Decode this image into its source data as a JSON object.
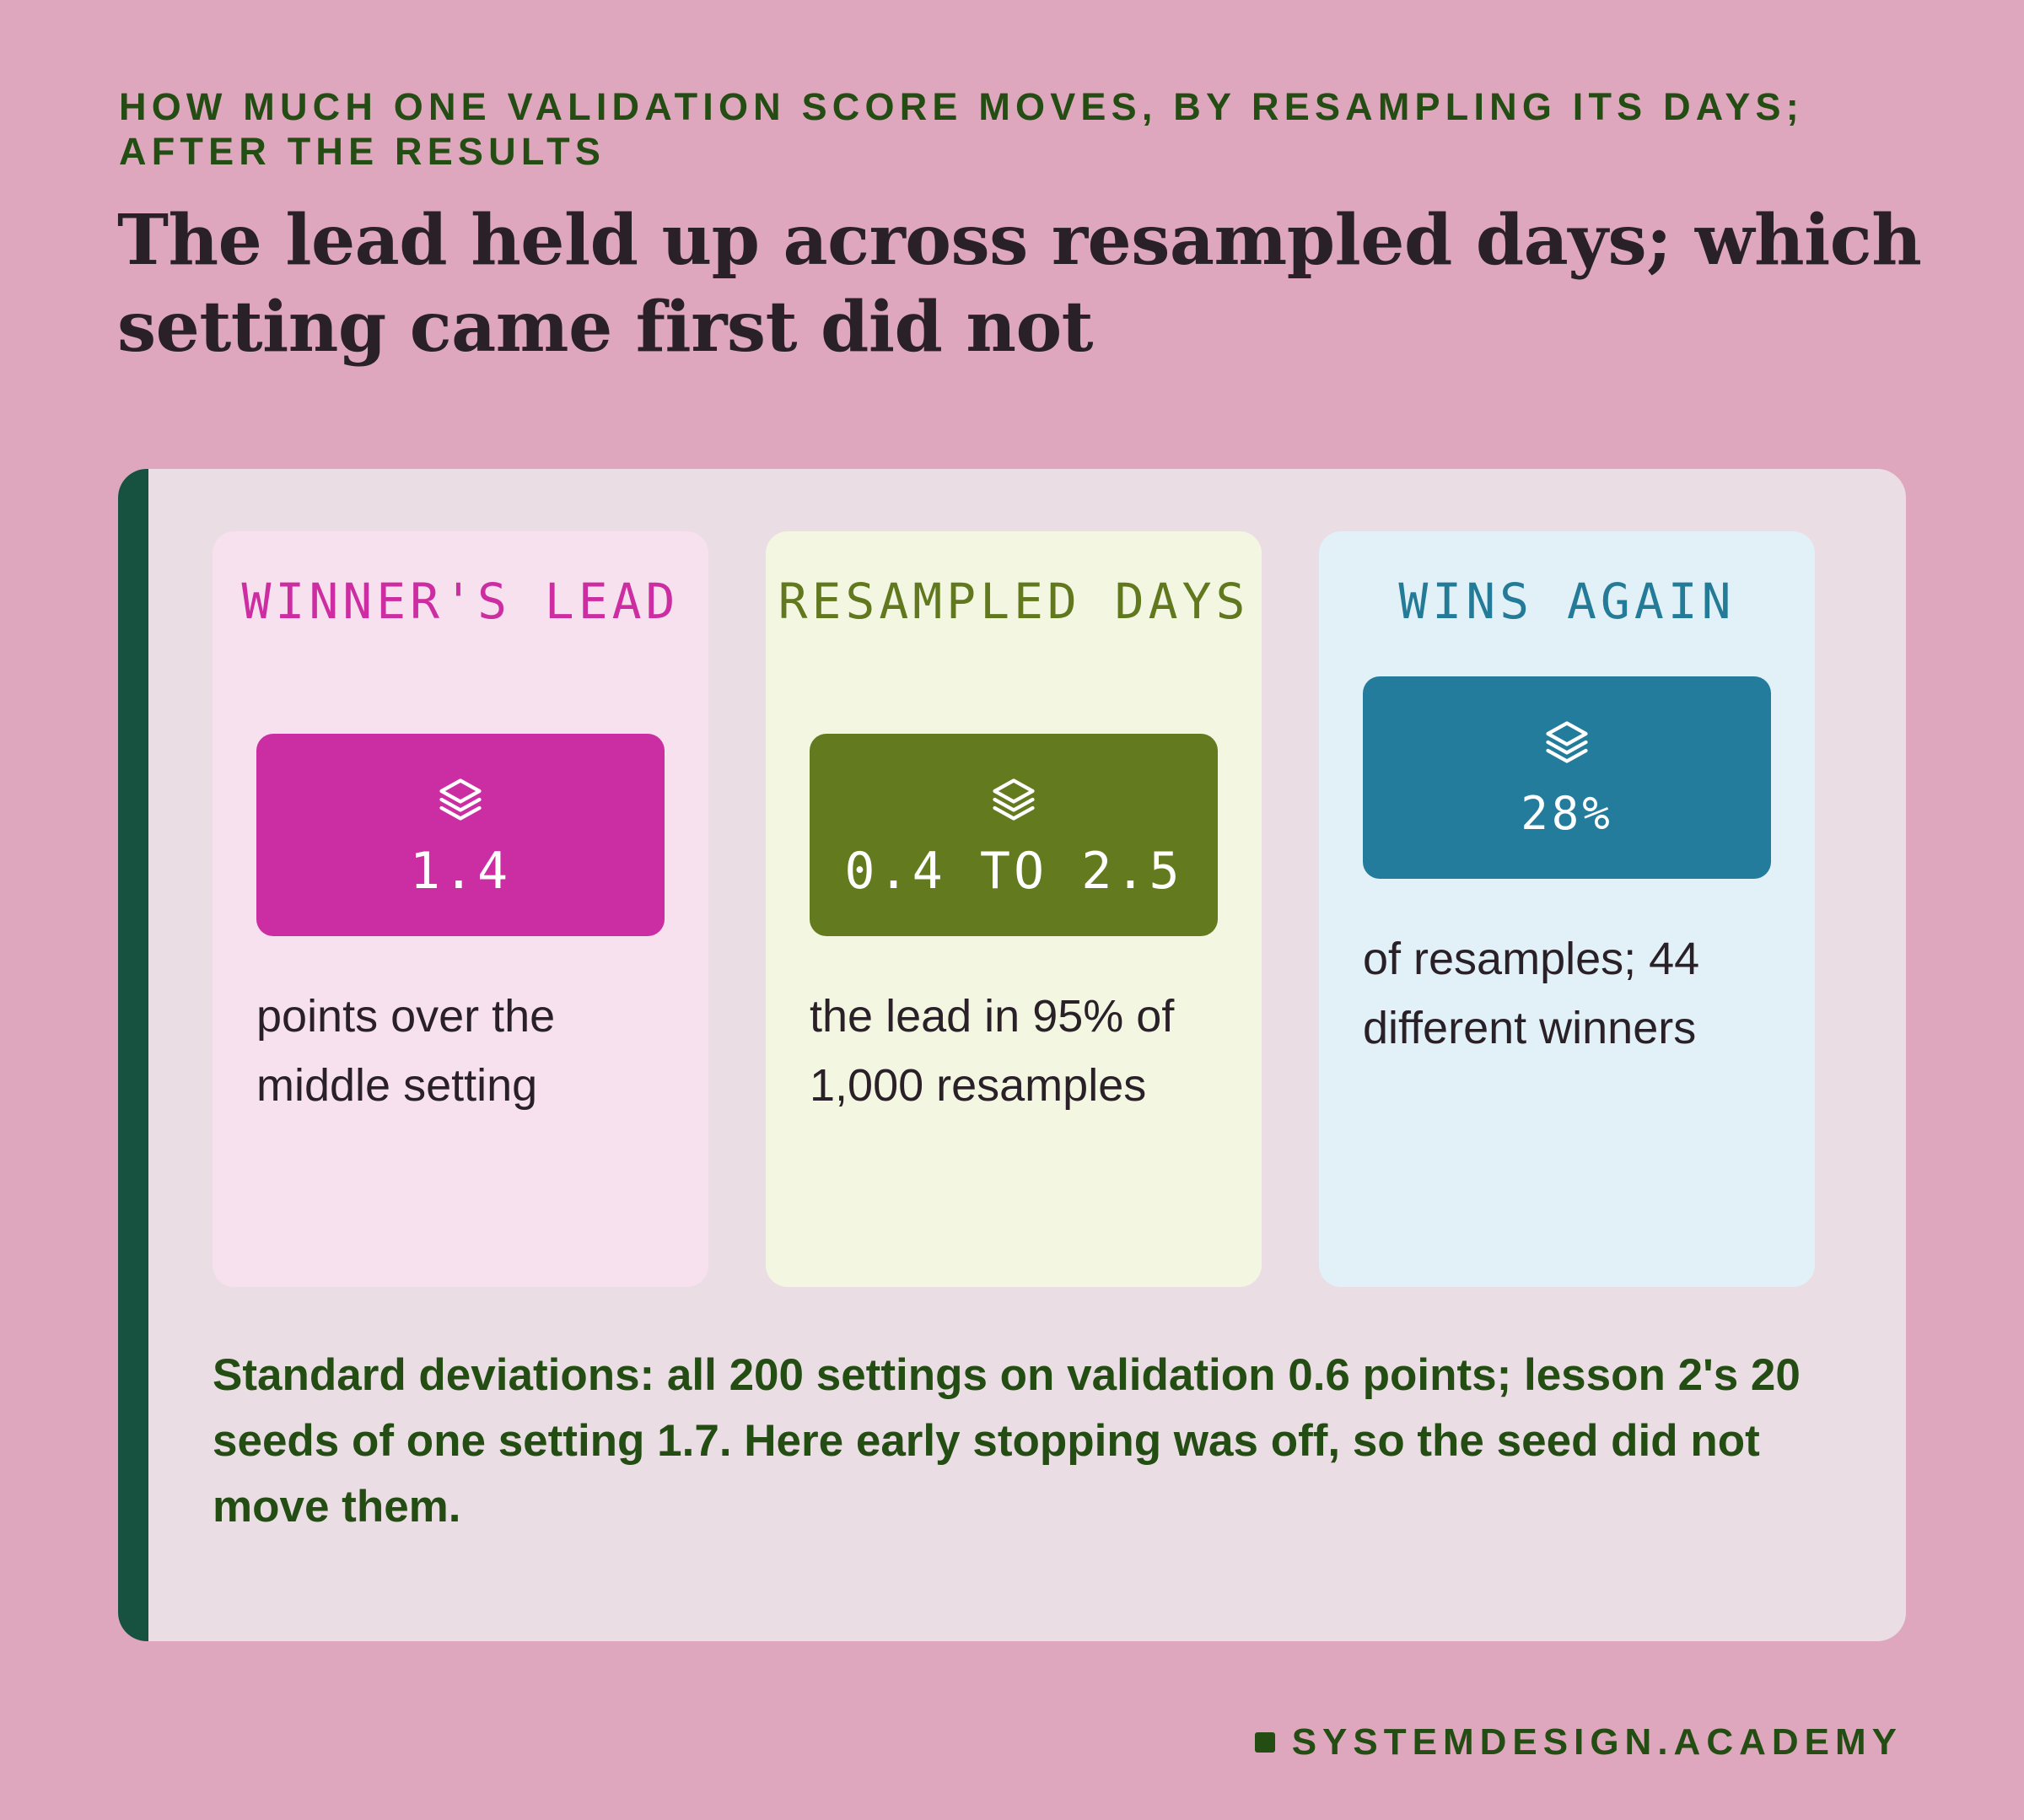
{
  "eyebrow": "HOW MUCH ONE VALIDATION SCORE MOVES, BY RESAMPLING ITS DAYS; AFTER THE RESULTS",
  "headline": "The lead held up across resampled days; which setting came first did not",
  "colors": {
    "background": "#dea7bd",
    "panel": "#eadde3",
    "accent_bar": "#17513f",
    "text_dark": "#2a2128",
    "text_green": "#244d14",
    "magenta": "#ca2ea2",
    "olive": "#637a1f",
    "teal": "#237c9b"
  },
  "cards": [
    {
      "label": "WINNER'S LEAD",
      "icon": "layers-icon",
      "value": "1.4",
      "description": "points over the middle setting"
    },
    {
      "label": "RESAMPLED DAYS",
      "icon": "layers-icon",
      "value": "0.4 TO 2.5",
      "description": "the lead in 95% of 1,000 resamples"
    },
    {
      "label": "WINS AGAIN",
      "icon": "layers-icon",
      "value": "28%",
      "description": "of resamples; 44 different winners"
    }
  ],
  "footnote": "Standard deviations: all 200 settings on validation 0.6 points; lesson 2's 20 seeds of one setting 1.7. Here early stopping was off, so the seed did not move them.",
  "brand": "SYSTEMDESIGN.ACADEMY"
}
